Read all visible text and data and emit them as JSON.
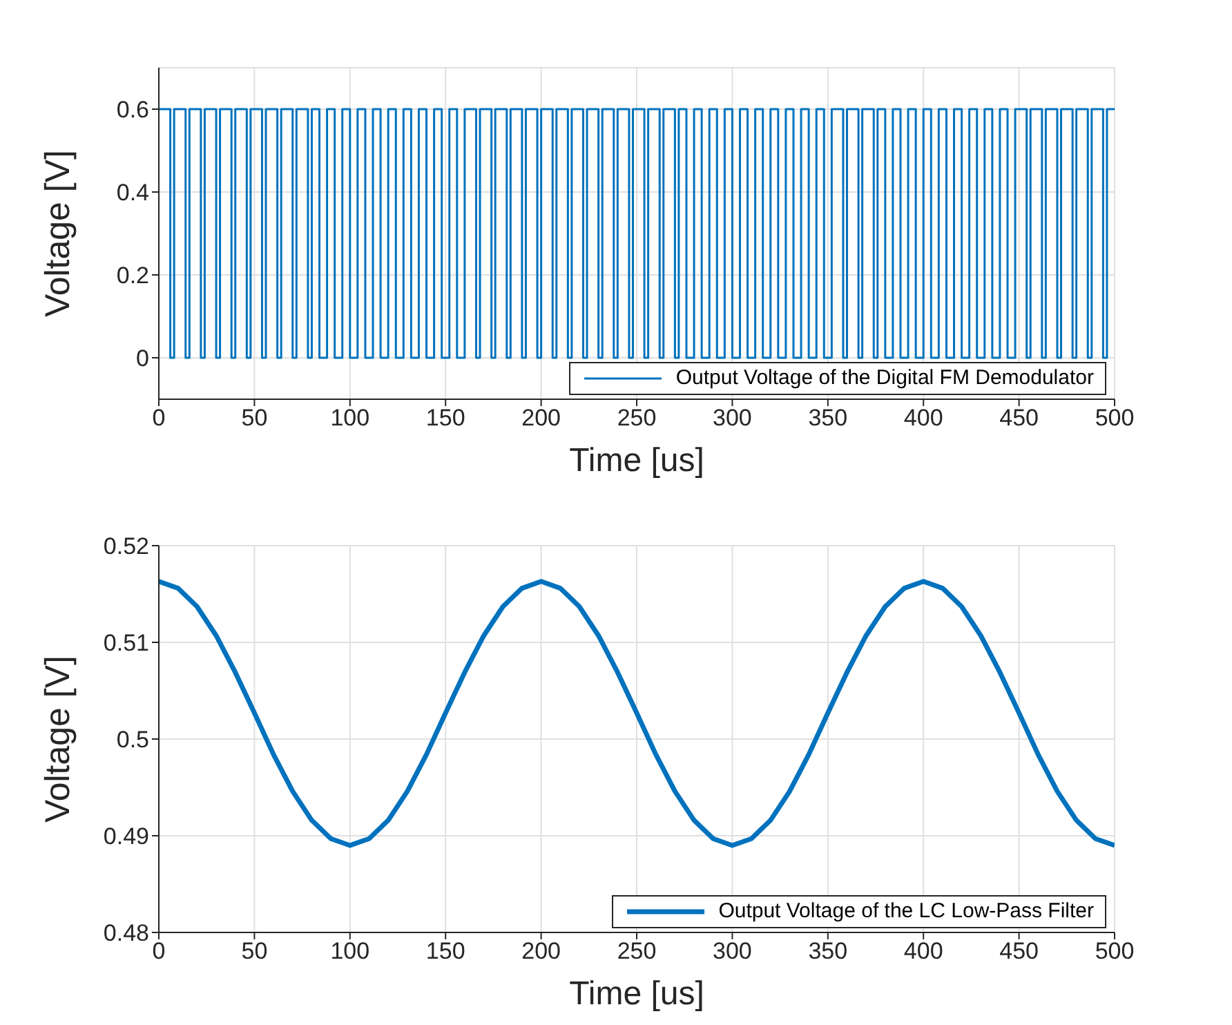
{
  "chart_data": [
    {
      "type": "step",
      "xlabel": "Time [us]",
      "ylabel": "Voltage [V]",
      "xlim": [
        0,
        500
      ],
      "xticks": [
        0,
        50,
        100,
        150,
        200,
        250,
        300,
        350,
        400,
        450,
        500
      ],
      "ylim": [
        -0.1,
        0.7
      ],
      "yticks": [
        0,
        0.2,
        0.4,
        0.6
      ],
      "grid": true,
      "legend": "bottom right",
      "x": [
        0,
        6,
        8,
        14,
        16,
        22,
        24,
        30,
        32,
        38,
        40,
        46,
        48,
        54,
        56,
        62,
        64,
        70,
        72,
        78,
        80,
        84,
        88,
        92,
        96,
        100,
        104,
        108,
        112,
        116,
        120,
        124,
        128,
        132,
        136,
        140,
        144,
        148,
        152,
        156,
        160,
        166,
        168,
        174,
        176,
        182,
        184,
        190,
        192,
        198,
        200,
        206,
        208,
        214,
        216,
        222,
        224,
        230,
        232,
        238,
        240,
        246,
        248,
        254,
        256,
        262,
        264,
        270,
        272,
        276,
        280,
        284,
        288,
        292,
        296,
        300,
        304,
        308,
        312,
        316,
        320,
        324,
        328,
        332,
        336,
        340,
        344,
        348,
        352,
        358,
        360,
        366,
        368,
        374,
        376,
        380,
        384,
        388,
        392,
        396,
        400,
        404,
        408,
        412,
        416,
        420,
        424,
        428,
        432,
        436,
        440,
        444,
        448,
        454,
        456,
        462,
        464,
        470,
        472,
        478,
        480,
        486,
        488,
        494,
        496,
        500
      ],
      "series": [
        {
          "name": "Output Voltage of the Digital FM Demodulator",
          "color": "#0072bd",
          "values": [
            0.6,
            0,
            0.6,
            0,
            0.6,
            0,
            0.6,
            0,
            0.6,
            0,
            0.6,
            0,
            0.6,
            0,
            0.6,
            0,
            0.6,
            0,
            0.6,
            0,
            0.6,
            0,
            0.6,
            0,
            0.6,
            0,
            0.6,
            0,
            0.6,
            0,
            0.6,
            0,
            0.6,
            0,
            0.6,
            0,
            0.6,
            0,
            0.6,
            0,
            0.6,
            0,
            0.6,
            0,
            0.6,
            0,
            0.6,
            0,
            0.6,
            0,
            0.6,
            0,
            0.6,
            0,
            0.6,
            0,
            0.6,
            0,
            0.6,
            0,
            0.6,
            0,
            0.6,
            0,
            0.6,
            0,
            0.6,
            0,
            0.6,
            0,
            0.6,
            0,
            0.6,
            0,
            0.6,
            0,
            0.6,
            0,
            0.6,
            0,
            0.6,
            0,
            0.6,
            0,
            0.6,
            0,
            0.6,
            0,
            0.6,
            0,
            0.6,
            0,
            0.6,
            0,
            0.6,
            0,
            0.6,
            0,
            0.6,
            0,
            0.6,
            0,
            0.6,
            0,
            0.6,
            0,
            0.6,
            0,
            0.6,
            0,
            0.6,
            0,
            0.6,
            0,
            0.6,
            0,
            0.6,
            0,
            0.6,
            0,
            0.6,
            0,
            0.6,
            0,
            0.6,
            0.6
          ]
        }
      ]
    },
    {
      "type": "line",
      "xlabel": "Time [us]",
      "ylabel": "Voltage [V]",
      "xlim": [
        0,
        500
      ],
      "xticks": [
        0,
        50,
        100,
        150,
        200,
        250,
        300,
        350,
        400,
        450,
        500
      ],
      "ylim": [
        0.48,
        0.52
      ],
      "yticks": [
        0.48,
        0.49,
        0.5,
        0.51,
        0.52
      ],
      "grid": true,
      "legend": "bottom right",
      "x": [
        0,
        10,
        20,
        30,
        40,
        50,
        60,
        70,
        80,
        90,
        100,
        110,
        120,
        130,
        140,
        150,
        160,
        170,
        180,
        190,
        200,
        210,
        220,
        230,
        240,
        250,
        260,
        270,
        280,
        290,
        300,
        310,
        320,
        330,
        340,
        350,
        360,
        370,
        380,
        390,
        400,
        410,
        420,
        430,
        440,
        450,
        460,
        470,
        480,
        490,
        500
      ],
      "series": [
        {
          "name": "Output Voltage of the LC Low-Pass Filter",
          "color": "#0072bd",
          "values": [
            0.5163,
            0.5156,
            0.5137,
            0.5107,
            0.5069,
            0.5027,
            0.4984,
            0.4946,
            0.4916,
            0.4897,
            0.489,
            0.4897,
            0.4916,
            0.4946,
            0.4984,
            0.5027,
            0.5069,
            0.5107,
            0.5137,
            0.5156,
            0.5163,
            0.5156,
            0.5137,
            0.5107,
            0.5069,
            0.5027,
            0.4984,
            0.4946,
            0.4916,
            0.4897,
            0.489,
            0.4897,
            0.4916,
            0.4946,
            0.4984,
            0.5027,
            0.5069,
            0.5107,
            0.5137,
            0.5156,
            0.5163,
            0.5156,
            0.5137,
            0.5107,
            0.5069,
            0.5027,
            0.4984,
            0.4946,
            0.4916,
            0.4897,
            0.489
          ]
        }
      ]
    }
  ]
}
